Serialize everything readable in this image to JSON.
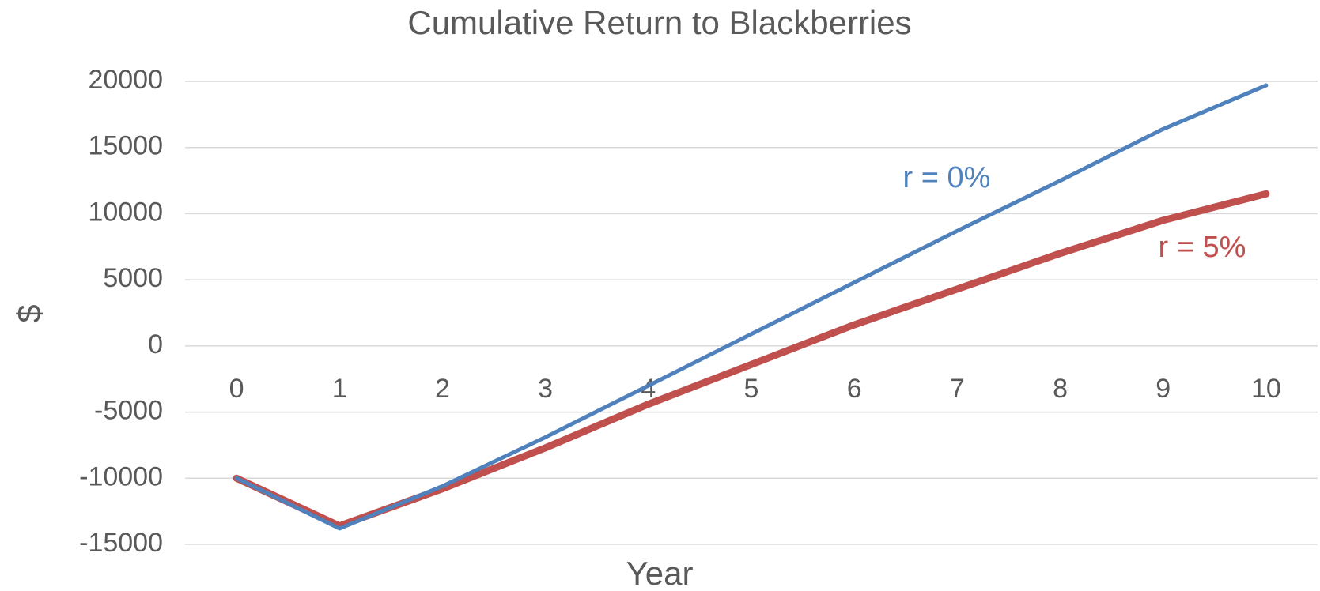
{
  "chart_data": {
    "type": "line",
    "title": "Cumulative Return to Blackberries",
    "xlabel": "Year",
    "ylabel": "$",
    "categories": [
      "0",
      "1",
      "2",
      "3",
      "4",
      "5",
      "6",
      "7",
      "8",
      "9",
      "10"
    ],
    "series": [
      {
        "name": "r = 0%",
        "color": "#4f81bd",
        "values": [
          -10000,
          -13800,
          -10600,
          -6900,
          -3000,
          900,
          4800,
          8700,
          12500,
          16400,
          19700
        ]
      },
      {
        "name": "r = 5%",
        "color": "#c0504d",
        "values": [
          -10000,
          -13600,
          -10800,
          -7700,
          -4400,
          -1400,
          1600,
          4300,
          7000,
          9500,
          11500
        ]
      }
    ],
    "ylim": [
      -15000,
      20000
    ],
    "yticks": [
      -15000,
      -10000,
      -5000,
      0,
      5000,
      10000,
      15000,
      20000
    ],
    "grid": true
  }
}
